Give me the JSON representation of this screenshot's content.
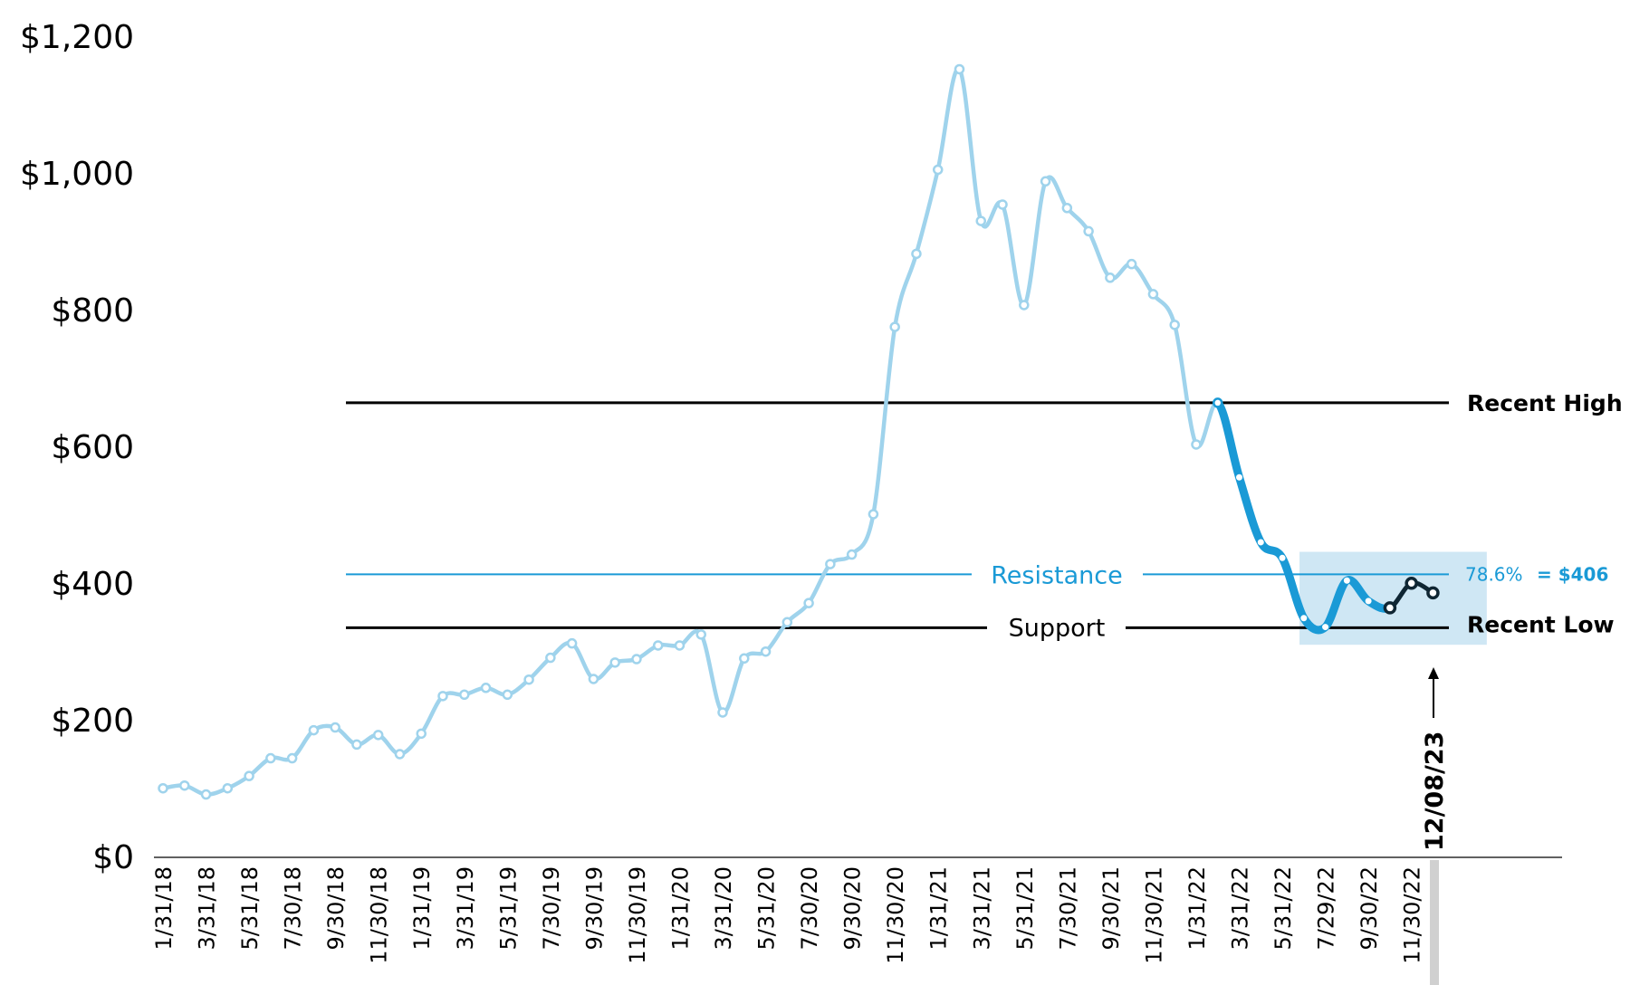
{
  "chart_data": {
    "type": "line",
    "yticks": [
      0,
      200,
      400,
      600,
      800,
      1000,
      1200
    ],
    "ytick_labels": [
      "$0",
      "$200",
      "$400",
      "$600",
      "$800",
      "$1,000",
      "$1,200"
    ],
    "ylim": [
      0,
      1200
    ],
    "xtick_labels": [
      "1/31/18",
      "3/31/18",
      "5/31/18",
      "7/30/18",
      "9/30/18",
      "11/30/18",
      "1/31/19",
      "3/31/19",
      "5/31/19",
      "7/30/19",
      "9/30/19",
      "11/30/19",
      "1/31/20",
      "3/31/20",
      "5/31/20",
      "7/30/20",
      "9/30/20",
      "11/30/20",
      "1/31/21",
      "3/31/21",
      "5/31/21",
      "7/30/21",
      "9/30/21",
      "11/30/21",
      "1/31/22",
      "3/31/22",
      "5/31/22",
      "7/29/22",
      "9/30/22",
      "11/30/22"
    ],
    "values": [
      101,
      105,
      92,
      101,
      119,
      145,
      145,
      186,
      190,
      165,
      179,
      151,
      181,
      236,
      238,
      248,
      238,
      260,
      292,
      313,
      261,
      285,
      290,
      310,
      310,
      326,
      212,
      291,
      301,
      344,
      372,
      429,
      443,
      502,
      776,
      883,
      1006,
      1153,
      931,
      955,
      808,
      989,
      950,
      916,
      848,
      868,
      824,
      779,
      604,
      665,
      556,
      461,
      438,
      350,
      337,
      405,
      375,
      365,
      401,
      387
    ],
    "segments": [
      {
        "from": 0,
        "to": 49,
        "color": "#9fd3ec"
      },
      {
        "from": 49,
        "to": 57,
        "color": "#1a9ad6"
      },
      {
        "from": 57,
        "to": 59,
        "color": "#0f2633"
      }
    ],
    "levels": [
      {
        "label": "Recent High",
        "value": 665,
        "color": "#000000"
      },
      {
        "label": "Resistance",
        "value": 414,
        "color": "#1a9ad6"
      },
      {
        "label": "Support",
        "value": 336,
        "color": "#000000"
      },
      {
        "label": "Recent Low",
        "color": "#000000"
      }
    ],
    "fib_text": "78.6%",
    "fib_value_text": "= $406",
    "marker_date": "12/08/23",
    "highlight_box": {
      "x_from": 52.8,
      "x_to": 61.5,
      "y_from": 311,
      "y_to": 447,
      "color": "#cfe7f4"
    }
  }
}
